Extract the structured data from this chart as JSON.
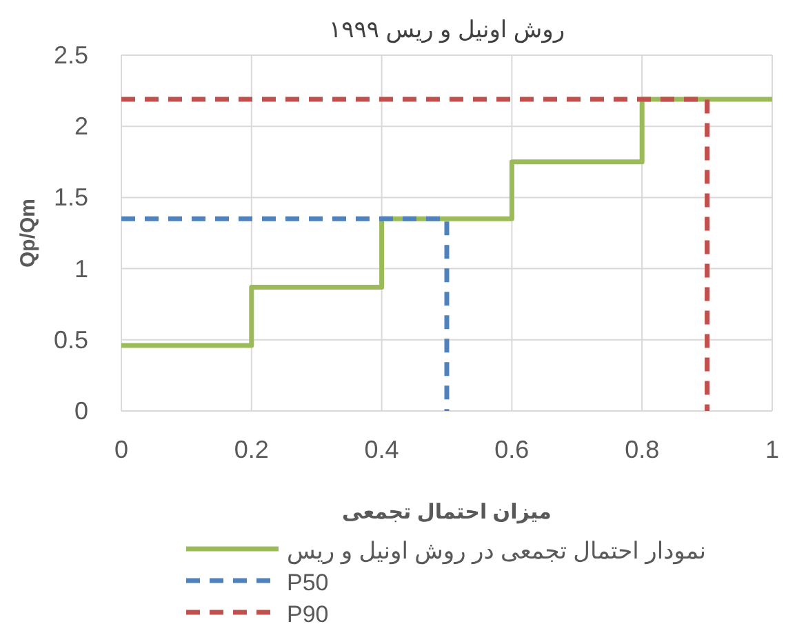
{
  "chart_data": {
    "type": "line",
    "title": "روش اونیل و ریس ۱۹۹۹",
    "xlabel": "میزان احتمال تجمعی",
    "ylabel": "Qp/Qm",
    "xlim": [
      0,
      1
    ],
    "ylim": [
      0,
      2.5
    ],
    "xticks": [
      0,
      0.2,
      0.4,
      0.6,
      0.8,
      1
    ],
    "yticks": [
      0,
      0.5,
      1,
      1.5,
      2,
      2.5
    ],
    "grid": true,
    "legend": "bottom",
    "marker": "none",
    "series": [
      {
        "name": "نمودار احتمال تجمعی در روش اونیل و ریس",
        "type": "step",
        "color": "#9bbb59",
        "line_style": "solid",
        "x": [
          0,
          0.2,
          0.4,
          0.6,
          0.8,
          1
        ],
        "values": [
          0.46,
          0.87,
          1.35,
          1.75,
          2.19,
          2.19
        ]
      },
      {
        "name": "P50",
        "color": "#4f81bd",
        "line_style": "dashed",
        "x": [
          0,
          0.5,
          0.5
        ],
        "values": [
          1.35,
          1.35,
          0
        ]
      },
      {
        "name": "P90",
        "color": "#c0504d",
        "line_style": "dashed",
        "x": [
          0,
          0.9,
          0.9
        ],
        "values": [
          2.19,
          2.19,
          0
        ]
      }
    ]
  }
}
